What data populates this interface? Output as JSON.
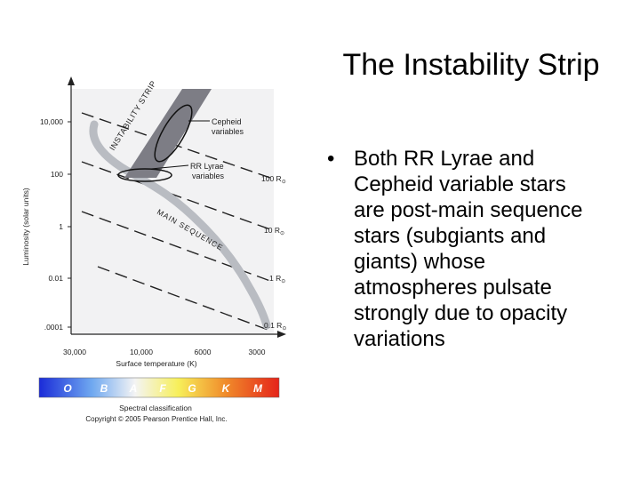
{
  "slide": {
    "title": "The Instability Strip",
    "bullet": "Both RR Lyrae and Cepheid variable stars are post-main sequence stars (subgiants and giants) whose atmospheres pulsate strongly due to opacity variations",
    "bullet_marker": "•"
  },
  "diagram": {
    "y_axis_label": "Luminosity (solar units)",
    "x_axis_label": "Surface temperature (K)",
    "y_ticks": [
      "10,000",
      "100",
      "1",
      "0.01",
      ".0001"
    ],
    "x_ticks": [
      "30,000",
      "10,000",
      "6000",
      "3000"
    ],
    "radius_lines": [
      "100 R",
      "10 R",
      "1 R",
      "0.1 R"
    ],
    "radius_symbol": "⊙",
    "strip_label": "INSTABILITY STRIP",
    "main_sequence_label": "MAIN SEQUENCE",
    "cepheid_label_line1": "Cepheid",
    "cepheid_label_line2": "variables",
    "rr_lyrae_label_line1": "RR Lyrae",
    "rr_lyrae_label_line2": "variables",
    "spectral_classes": [
      "O",
      "B",
      "A",
      "F",
      "G",
      "K",
      "M"
    ],
    "spectral_caption": "Spectral classification",
    "copyright": "Copyright © 2005 Pearson Prentice Hall, Inc.",
    "colors": {
      "strip": "#7d7d85",
      "main_sequence": "#b9bcc2",
      "plot_bg": "#f2f2f3",
      "spectral_bar_start": "#1a2bd8",
      "spectral_bar_end": "#e5241a"
    }
  }
}
